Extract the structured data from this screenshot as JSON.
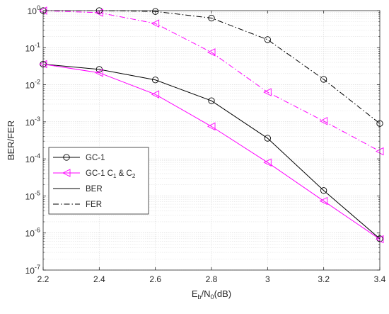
{
  "chart_data": {
    "type": "line",
    "xlabel": {
      "main": "E",
      "sub": "b",
      "mid": "/N",
      "sub2": "0",
      "tail": "(dB)"
    },
    "ylabel": "BER/FER",
    "x": [
      2.2,
      2.4,
      2.6,
      2.8,
      3.0,
      3.2,
      3.4
    ],
    "xticks": [
      "2.2",
      "2.4",
      "2.6",
      "2.8",
      "3",
      "3.2",
      "3.4"
    ],
    "xlim": [
      2.2,
      3.4
    ],
    "ylim": [
      1e-07,
      1
    ],
    "yscale": "log",
    "yticks": [
      {
        "base": "10",
        "exp": "0"
      },
      {
        "base": "10",
        "exp": "-1"
      },
      {
        "base": "10",
        "exp": "-2"
      },
      {
        "base": "10",
        "exp": "-3"
      },
      {
        "base": "10",
        "exp": "-4"
      },
      {
        "base": "10",
        "exp": "-5"
      },
      {
        "base": "10",
        "exp": "-6"
      },
      {
        "base": "10",
        "exp": "-7"
      }
    ],
    "grid": true,
    "legend_position": "lower-left",
    "legend": [
      {
        "label": "GC-1",
        "marker": "circle",
        "color": "#000000",
        "dash": "solid"
      },
      {
        "label_parts": [
          "GC-1 C",
          "1",
          " & C",
          "2"
        ],
        "marker": "triangle-left",
        "color": "#ff00ff",
        "dash": "solid"
      },
      {
        "label": "BER",
        "marker": "none",
        "color": "#000000",
        "dash": "solid"
      },
      {
        "label": "FER",
        "marker": "none",
        "color": "#000000",
        "dash": "dashdot"
      }
    ],
    "series": [
      {
        "code": "gc1-ber",
        "marker": "circle",
        "color": "#000000",
        "dash": "solid",
        "values": [
          0.036,
          0.026,
          0.0135,
          0.0037,
          0.00036,
          1.4e-05,
          7e-07
        ]
      },
      {
        "code": "gc1c-ber",
        "marker": "triangle-left",
        "color": "#ff00ff",
        "dash": "solid",
        "values": [
          0.036,
          0.021,
          0.0055,
          0.00075,
          8e-05,
          7.3e-06,
          6.8e-07
        ]
      },
      {
        "code": "gc1-fer",
        "marker": "circle",
        "color": "#000000",
        "dash": "dashdot",
        "values": [
          1.0,
          1.0,
          0.95,
          0.63,
          0.165,
          0.014,
          0.0009
        ]
      },
      {
        "code": "gc1c-fer",
        "marker": "triangle-left",
        "color": "#ff00ff",
        "dash": "dashdot",
        "values": [
          1.0,
          0.88,
          0.45,
          0.075,
          0.0063,
          0.00105,
          0.00016
        ]
      }
    ]
  }
}
